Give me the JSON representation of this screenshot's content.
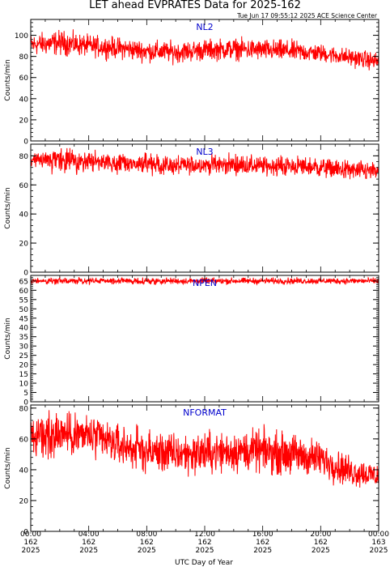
{
  "header": {
    "title": "LET ahead EVPRATES Data for 2025-162",
    "timestamp": "Tue Jun 17 09:55:12 2025 ACE Science Center"
  },
  "x_axis": {
    "label": "UTC Day of Year",
    "ticks": [
      {
        "time": "00:00",
        "day": "162",
        "year": "2025"
      },
      {
        "time": "04:00",
        "day": "162",
        "year": "2025"
      },
      {
        "time": "08:00",
        "day": "162",
        "year": "2025"
      },
      {
        "time": "12:00",
        "day": "162",
        "year": "2025"
      },
      {
        "time": "16:00",
        "day": "162",
        "year": "2025"
      },
      {
        "time": "20:00",
        "day": "162",
        "year": "2025"
      },
      {
        "time": "00:00",
        "day": "163",
        "year": "2025"
      }
    ]
  },
  "colors": {
    "series": "#ff0000",
    "panel_label": "#0000cc",
    "axis": "#000000"
  },
  "chart_data": [
    {
      "type": "line",
      "series_label": "NL2",
      "ylabel": "Counts/min",
      "xlim_hours": [
        0,
        24
      ],
      "ylim": [
        0,
        115
      ],
      "y_ticks": [
        0,
        20,
        40,
        60,
        80,
        100
      ],
      "x_hours": [
        0,
        2,
        4,
        6,
        8,
        10,
        12,
        14,
        16,
        18,
        20,
        22,
        24
      ],
      "mean": [
        91,
        93,
        90,
        88,
        85,
        84,
        86,
        87,
        86,
        85,
        83,
        79,
        75
      ],
      "spread": [
        6,
        7,
        6,
        6,
        6,
        6,
        6,
        6,
        6,
        6,
        5,
        5,
        5
      ]
    },
    {
      "type": "line",
      "series_label": "NL3",
      "ylabel": "Counts/min",
      "xlim_hours": [
        0,
        24
      ],
      "ylim": [
        0,
        88
      ],
      "y_ticks": [
        0,
        20,
        40,
        60,
        80
      ],
      "x_hours": [
        0,
        2,
        4,
        6,
        8,
        10,
        12,
        14,
        16,
        18,
        20,
        22,
        24
      ],
      "mean": [
        76,
        77,
        76,
        75,
        74,
        73,
        74,
        74,
        73,
        73,
        72,
        70,
        69
      ],
      "spread": [
        4,
        5,
        4,
        4,
        4,
        4,
        4,
        4,
        4,
        4,
        4,
        4,
        4
      ]
    },
    {
      "type": "line",
      "series_label": "NPEN",
      "ylabel": "Counts/min",
      "xlim_hours": [
        0,
        24
      ],
      "ylim": [
        0,
        68
      ],
      "y_ticks": [
        0,
        5,
        10,
        15,
        20,
        25,
        30,
        35,
        40,
        45,
        50,
        55,
        60,
        65
      ],
      "x_hours": [
        0,
        2,
        4,
        6,
        8,
        10,
        12,
        14,
        16,
        18,
        20,
        22,
        24
      ],
      "mean": [
        65,
        65,
        65,
        65,
        65,
        65,
        65,
        65,
        65,
        65,
        65,
        65,
        65
      ],
      "spread": [
        1,
        1,
        1,
        1,
        1,
        1,
        1,
        1,
        1,
        1,
        1,
        1,
        1
      ]
    },
    {
      "type": "line",
      "series_label": "NFORMAT",
      "ylabel": "Counts/min",
      "xlim_hours": [
        0,
        24
      ],
      "ylim": [
        0,
        82
      ],
      "y_ticks": [
        0,
        20,
        40,
        60,
        80
      ],
      "x_hours": [
        0,
        2,
        4,
        6,
        8,
        10,
        12,
        14,
        16,
        18,
        20,
        22,
        24
      ],
      "mean": [
        60,
        64,
        62,
        56,
        52,
        50,
        51,
        52,
        52,
        50,
        47,
        39,
        36
      ],
      "spread": [
        8,
        9,
        9,
        8,
        8,
        8,
        8,
        8,
        8,
        8,
        7,
        6,
        5
      ]
    }
  ]
}
